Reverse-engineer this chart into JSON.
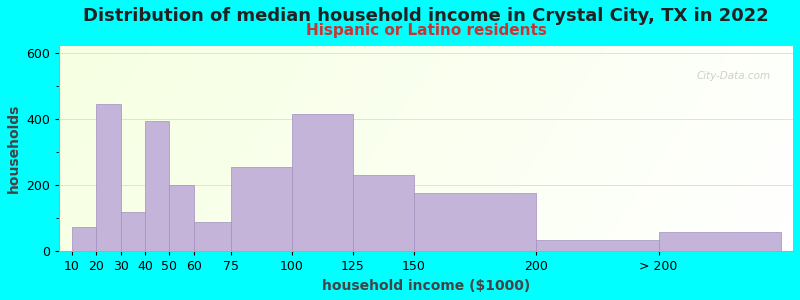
{
  "title": "Distribution of median household income in Crystal City, TX in 2022",
  "subtitle": "Hispanic or Latino residents",
  "xlabel": "household income ($1000)",
  "ylabel": "households",
  "background_color": "#00ffff",
  "bar_color": "#c5b4d9",
  "bar_edge_color": "#a090be",
  "bin_edges": [
    10,
    20,
    30,
    40,
    50,
    60,
    75,
    100,
    125,
    150,
    200,
    250,
    300
  ],
  "values": [
    75,
    445,
    120,
    395,
    200,
    90,
    255,
    415,
    230,
    175,
    35,
    60
  ],
  "ylim": [
    0,
    620
  ],
  "yticks": [
    0,
    200,
    400,
    600
  ],
  "xlim_left": 5,
  "xlim_right": 305,
  "title_fontsize": 13,
  "subtitle_fontsize": 11,
  "subtitle_color": "#cc3333",
  "axis_label_fontsize": 10,
  "tick_fontsize": 9,
  "xtick_positions": [
    10,
    20,
    30,
    40,
    50,
    60,
    75,
    100,
    125,
    150,
    200,
    250
  ],
  "xtick_labels": [
    "10",
    "20",
    "30",
    "40",
    "50",
    "60",
    "75",
    "100",
    "125",
    "150",
    "200",
    "> 200"
  ],
  "watermark": "City-Data.com"
}
